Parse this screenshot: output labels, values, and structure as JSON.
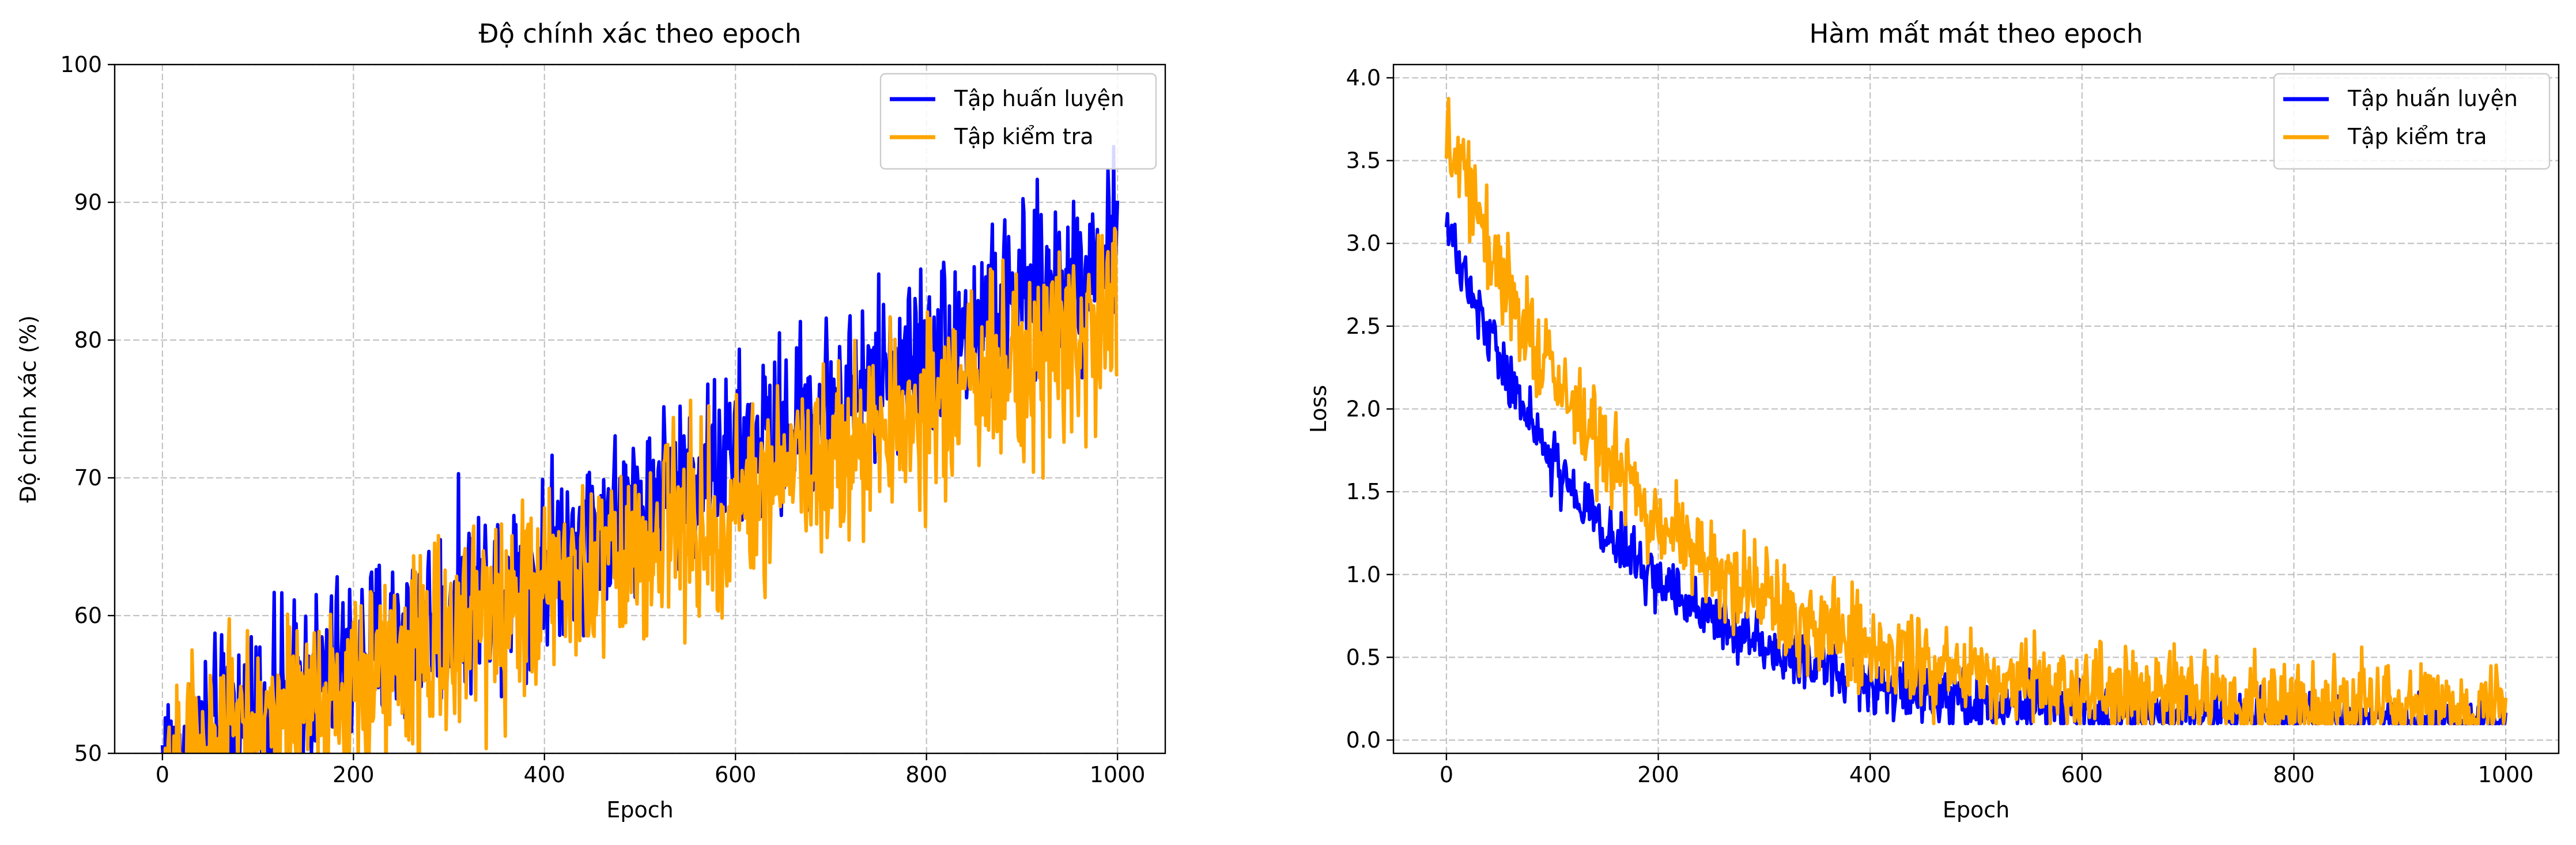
{
  "chart_data": [
    {
      "type": "line",
      "title": "Độ chính xác theo epoch",
      "xlabel": "Epoch",
      "ylabel": "Độ chính xác (%)",
      "xlim": [
        -50,
        1050
      ],
      "ylim": [
        50,
        100
      ],
      "xticks": [
        0,
        200,
        400,
        600,
        800,
        1000
      ],
      "yticks": [
        50,
        60,
        70,
        80,
        90,
        100
      ],
      "grid": true,
      "legend_position": "top-right",
      "series": [
        {
          "name": "Tập huấn luyện",
          "color": "#0000ff",
          "trend": {
            "x": [
              0,
              1000
            ],
            "y": [
              49.5,
              86.5
            ]
          },
          "noise": 3.2,
          "x": [
            0,
            50,
            100,
            150,
            200,
            250,
            300,
            350,
            400,
            450,
            500,
            550,
            600,
            650,
            700,
            750,
            800,
            850,
            900,
            950,
            1000
          ],
          "y": [
            51.0,
            52.5,
            54.0,
            56.5,
            58.0,
            60.0,
            62.0,
            63.5,
            65.0,
            66.0,
            68.0,
            70.0,
            71.5,
            73.0,
            75.0,
            76.5,
            78.0,
            80.0,
            81.5,
            84.0,
            86.0
          ]
        },
        {
          "name": "Tập kiểm tra",
          "color": "#ffa500",
          "trend": {
            "x": [
              0,
              1000
            ],
            "y": [
              48.5,
              81.5
            ]
          },
          "noise": 3.6,
          "x": [
            0,
            50,
            100,
            150,
            200,
            250,
            300,
            350,
            400,
            450,
            500,
            550,
            600,
            650,
            700,
            750,
            800,
            850,
            900,
            950,
            1000
          ],
          "y": [
            48.5,
            50.0,
            51.5,
            53.0,
            54.5,
            56.0,
            58.0,
            59.5,
            61.0,
            62.5,
            64.5,
            66.0,
            67.5,
            69.0,
            71.0,
            72.5,
            74.0,
            75.5,
            77.5,
            79.5,
            81.0
          ]
        }
      ]
    },
    {
      "type": "line",
      "title": "Hàm mất mát theo epoch",
      "xlabel": "Epoch",
      "ylabel": "Loss",
      "xlim": [
        -50,
        1050
      ],
      "ylim": [
        -0.08,
        4.08
      ],
      "xticks": [
        0,
        200,
        400,
        600,
        800,
        1000
      ],
      "yticks": [
        0.0,
        0.5,
        1.0,
        1.5,
        2.0,
        2.5,
        3.0,
        3.5,
        4.0
      ],
      "grid": true,
      "legend_position": "top-right",
      "series": [
        {
          "name": "Tập huấn luyện",
          "color": "#0000ff",
          "decay": {
            "a": 3.0,
            "k": 0.0062,
            "floor": 0.1,
            "y_min": 0.1
          },
          "noise": 0.09,
          "x": [
            0,
            50,
            100,
            150,
            200,
            250,
            300,
            350,
            400,
            450,
            500,
            600,
            700,
            800,
            900,
            1000
          ],
          "y": [
            3.0,
            2.35,
            1.9,
            1.6,
            1.1,
            0.95,
            0.75,
            0.55,
            0.45,
            0.3,
            0.2,
            0.15,
            0.12,
            0.11,
            0.1,
            0.1
          ]
        },
        {
          "name": "Tập kiểm tra",
          "color": "#ffa500",
          "decay": {
            "a": 3.5,
            "k": 0.0055,
            "floor": 0.18,
            "y_min": 0.1
          },
          "noise": 0.14,
          "x": [
            0,
            50,
            100,
            150,
            200,
            250,
            300,
            350,
            400,
            450,
            500,
            600,
            700,
            800,
            900,
            1000
          ],
          "y": [
            3.6,
            2.9,
            2.4,
            2.0,
            1.4,
            1.1,
            0.95,
            0.75,
            0.55,
            0.4,
            0.3,
            0.25,
            0.22,
            0.2,
            0.2,
            0.18
          ]
        }
      ]
    }
  ]
}
